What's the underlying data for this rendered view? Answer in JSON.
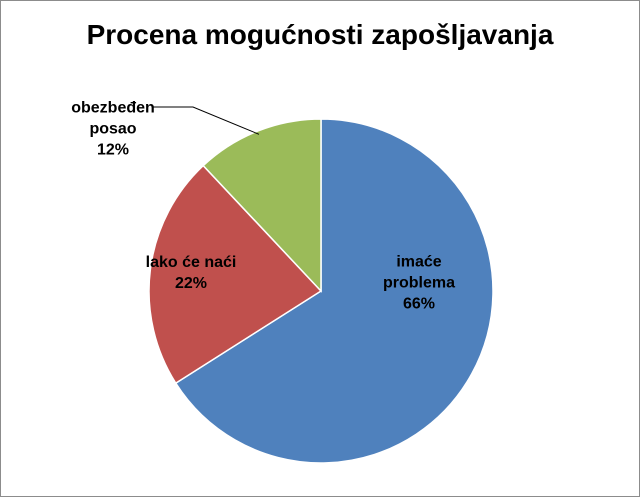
{
  "chart_data": {
    "type": "pie",
    "title": "Procena mogućnosti zapošljavanja",
    "categories": [
      "imaće problema",
      "lako će naći",
      "obezbeđen posao"
    ],
    "values": [
      66,
      22,
      12
    ],
    "value_labels": [
      "66%",
      "22%",
      "12%"
    ],
    "colors": [
      "#4f81bd",
      "#c0504d",
      "#9bbb59"
    ]
  }
}
